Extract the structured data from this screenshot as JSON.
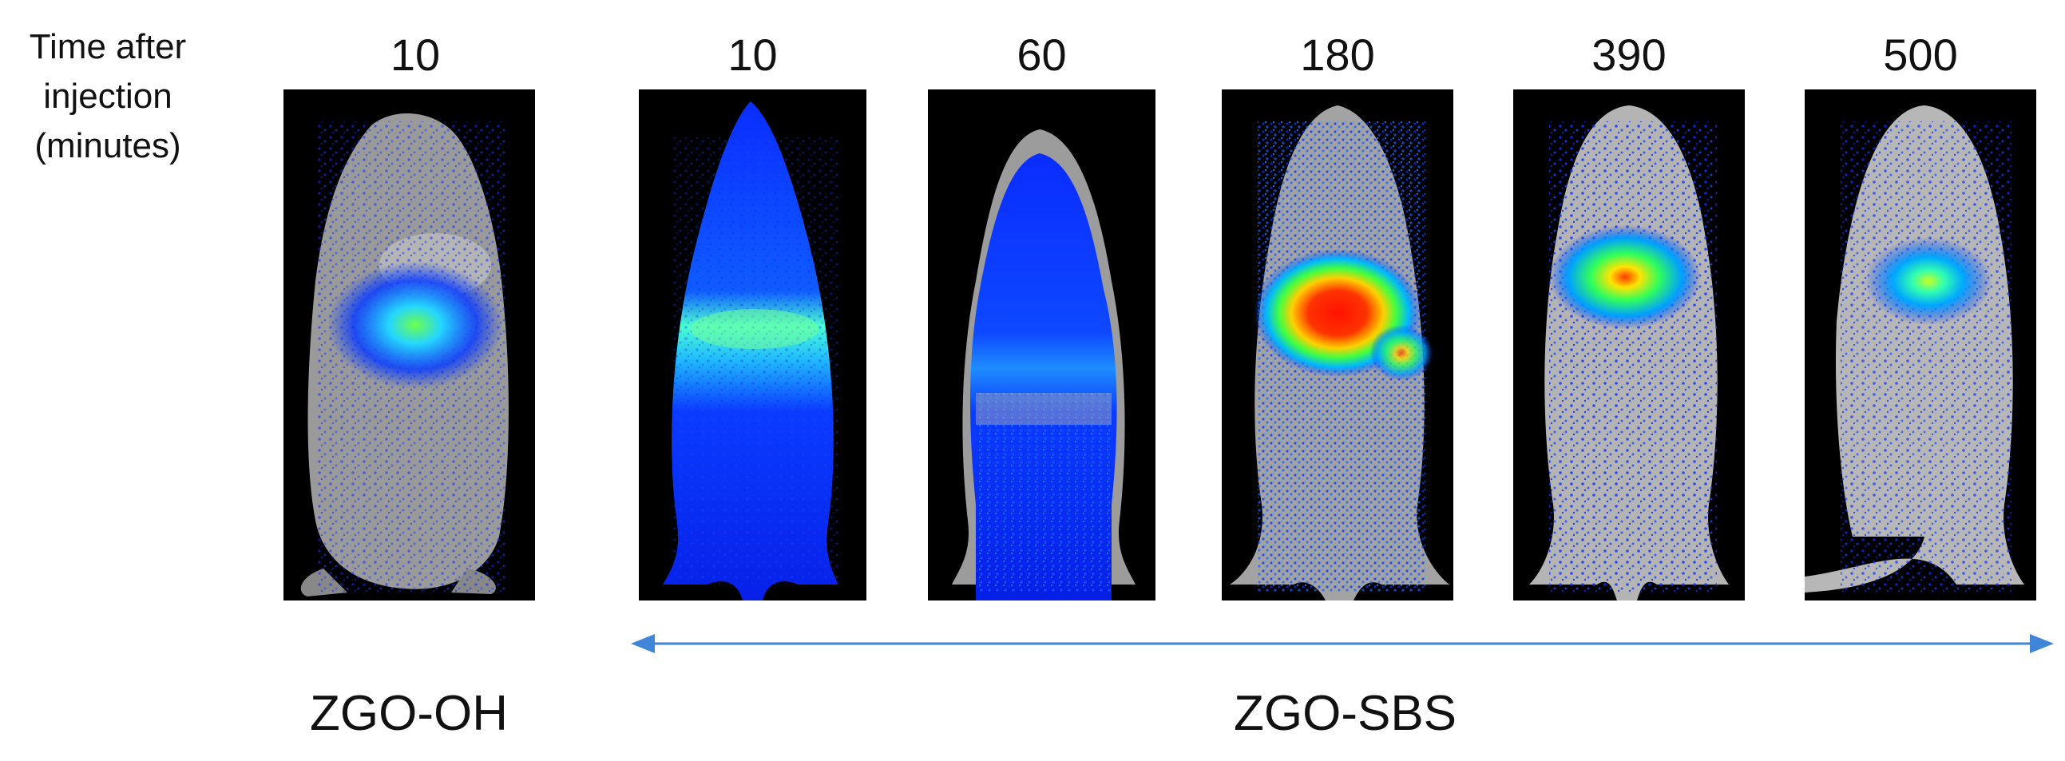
{
  "axis_caption": {
    "line1": "Time after",
    "line2": "injection",
    "line3": "(minutes)"
  },
  "groups": {
    "control": "ZGO-OH",
    "treated": "ZGO-SBS"
  },
  "panels": [
    {
      "time": "10",
      "group": "ZGO-OH",
      "signal": "medium"
    },
    {
      "time": "10",
      "group": "ZGO-SBS",
      "signal": "diffuse-high"
    },
    {
      "time": "60",
      "group": "ZGO-SBS",
      "signal": "diffuse"
    },
    {
      "time": "180",
      "group": "ZGO-SBS",
      "signal": "peak"
    },
    {
      "time": "390",
      "group": "ZGO-SBS",
      "signal": "high"
    },
    {
      "time": "500",
      "group": "ZGO-SBS",
      "signal": "low"
    }
  ],
  "colors": {
    "background": "#000000",
    "body": "#9a9a9a",
    "signal_low": "#0a2cff",
    "signal_mid": "#36e0ff",
    "signal_high": "#ff1a00",
    "arrow": "#3f86d8"
  }
}
